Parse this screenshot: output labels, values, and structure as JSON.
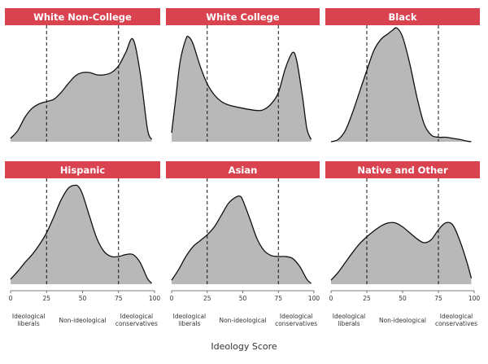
{
  "colors": {
    "header": "#d9434f",
    "fill": "#b8b8b8",
    "stroke": "#111111",
    "text": "#333333"
  },
  "chart_data": {
    "type": "area",
    "xlabel": "Ideology Score",
    "xlim": [
      0,
      100
    ],
    "xticks": [
      0,
      25,
      50,
      75,
      100
    ],
    "reference_lines": [
      25,
      75
    ],
    "regions": [
      {
        "label_lines": [
          "Ideological",
          "liberals"
        ],
        "x": 12.5
      },
      {
        "label_lines": [
          "Non-ideological"
        ],
        "x": 50
      },
      {
        "label_lines": [
          "Ideological",
          "conservatives"
        ],
        "x": 87.5
      }
    ],
    "panels": [
      {
        "title": "White Non-College",
        "x": [
          0,
          5,
          10,
          15,
          20,
          25,
          30,
          35,
          40,
          45,
          50,
          55,
          60,
          65,
          70,
          75,
          80,
          85,
          90,
          95,
          98
        ],
        "density": [
          0.03,
          0.1,
          0.22,
          0.3,
          0.34,
          0.36,
          0.38,
          0.44,
          0.52,
          0.59,
          0.62,
          0.62,
          0.6,
          0.6,
          0.62,
          0.68,
          0.8,
          0.92,
          0.62,
          0.12,
          0.02
        ]
      },
      {
        "title": "White College",
        "x": [
          0,
          3,
          6,
          10,
          12,
          15,
          20,
          25,
          30,
          35,
          40,
          50,
          60,
          65,
          70,
          75,
          80,
          85,
          88,
          92,
          95,
          98
        ],
        "density": [
          0.08,
          0.4,
          0.72,
          0.92,
          0.94,
          0.88,
          0.68,
          0.52,
          0.42,
          0.36,
          0.33,
          0.3,
          0.28,
          0.29,
          0.34,
          0.44,
          0.66,
          0.8,
          0.72,
          0.4,
          0.12,
          0.02
        ]
      },
      {
        "title": "Black",
        "x": [
          0,
          5,
          10,
          15,
          20,
          25,
          30,
          35,
          40,
          43,
          46,
          50,
          55,
          60,
          65,
          70,
          75,
          80,
          85,
          90,
          95,
          98
        ],
        "density": [
          0.0,
          0.02,
          0.1,
          0.26,
          0.45,
          0.64,
          0.82,
          0.92,
          0.97,
          1.0,
          1.02,
          0.94,
          0.7,
          0.4,
          0.16,
          0.06,
          0.04,
          0.04,
          0.03,
          0.02,
          0.005,
          0.0
        ]
      },
      {
        "title": "Hispanic",
        "x": [
          0,
          5,
          10,
          15,
          20,
          25,
          30,
          35,
          40,
          44,
          47,
          50,
          55,
          60,
          65,
          70,
          75,
          80,
          85,
          90,
          95,
          98
        ],
        "density": [
          0.05,
          0.13,
          0.22,
          0.3,
          0.4,
          0.52,
          0.68,
          0.85,
          0.97,
          1.0,
          0.99,
          0.91,
          0.68,
          0.46,
          0.33,
          0.28,
          0.28,
          0.3,
          0.3,
          0.22,
          0.06,
          0.01
        ]
      },
      {
        "title": "Asian",
        "x": [
          0,
          5,
          10,
          15,
          20,
          25,
          30,
          35,
          40,
          45,
          48,
          50,
          55,
          60,
          65,
          70,
          75,
          80,
          85,
          90,
          95,
          98
        ],
        "density": [
          0.04,
          0.15,
          0.28,
          0.38,
          0.44,
          0.5,
          0.58,
          0.7,
          0.82,
          0.88,
          0.89,
          0.85,
          0.66,
          0.46,
          0.34,
          0.29,
          0.28,
          0.28,
          0.26,
          0.18,
          0.05,
          0.01
        ]
      },
      {
        "title": "Native and Other",
        "x": [
          0,
          5,
          10,
          15,
          20,
          25,
          30,
          35,
          40,
          45,
          50,
          55,
          60,
          65,
          70,
          75,
          80,
          85,
          90,
          95,
          98
        ],
        "density": [
          0.04,
          0.12,
          0.22,
          0.32,
          0.41,
          0.48,
          0.54,
          0.59,
          0.62,
          0.62,
          0.58,
          0.52,
          0.46,
          0.42,
          0.45,
          0.55,
          0.62,
          0.6,
          0.44,
          0.22,
          0.06
        ]
      }
    ]
  }
}
